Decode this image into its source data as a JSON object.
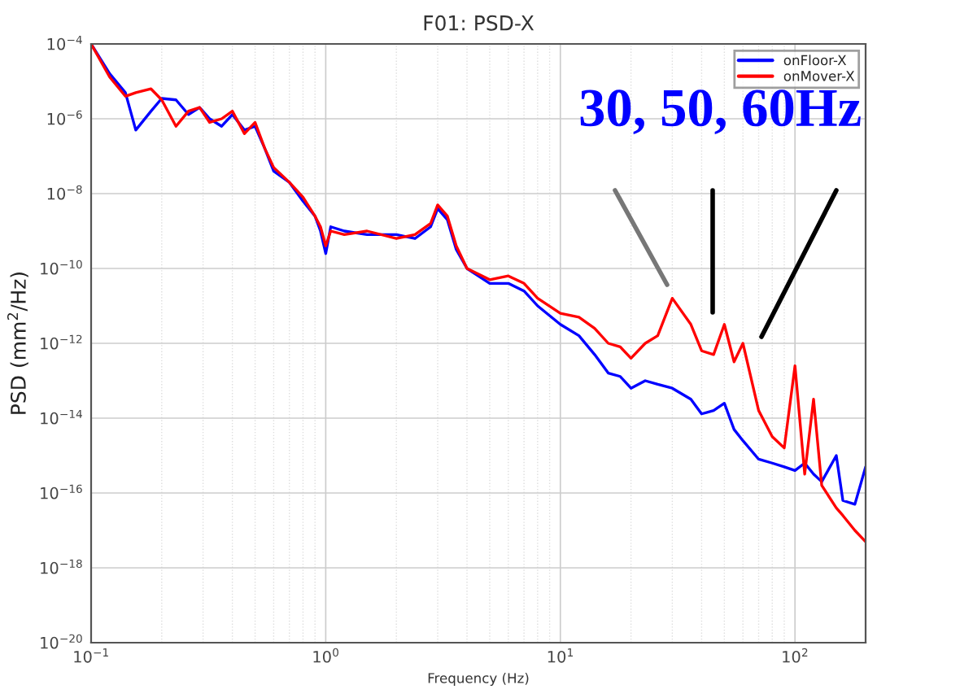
{
  "chart_data": {
    "type": "line",
    "title": "F01: PSD-X",
    "xlabel": "Frequency (Hz)",
    "ylabel": "PSD (mm$^{2}$/Hz)",
    "annotations": [
      "30, 50, 60Hz"
    ],
    "x": [
      0.1,
      0.12,
      0.14,
      0.155,
      0.18,
      0.2,
      0.23,
      0.26,
      0.29,
      0.32,
      0.36,
      0.4,
      0.45,
      0.5,
      0.55,
      0.6,
      0.7,
      0.8,
      0.9,
      0.95,
      1.0,
      1.05,
      1.2,
      1.5,
      2.0,
      2.4,
      2.8,
      3.0,
      3.3,
      3.6,
      4,
      5,
      6,
      7,
      8,
      10,
      12,
      14,
      16,
      18,
      20,
      23,
      26,
      30,
      36,
      40,
      45,
      50,
      55,
      60,
      70,
      80,
      90,
      100,
      110,
      120,
      130,
      150,
      160,
      180,
      200
    ],
    "series": [
      {
        "name": "onFloor-X",
        "color": "#0000ff",
        "values": [
          0.0001,
          1.6e-05,
          5e-06,
          5e-07,
          1.6e-06,
          3.5e-06,
          3.2e-06,
          1.3e-06,
          2e-06,
          1e-06,
          6.3e-07,
          1.3e-06,
          5e-07,
          6.3e-07,
          1.6e-07,
          4e-08,
          2e-08,
          6.3e-09,
          2.5e-09,
          1e-09,
          2.5e-10,
          1.3e-09,
          1e-09,
          8e-10,
          8e-10,
          6.3e-10,
          1.3e-09,
          4e-09,
          2e-09,
          3.2e-10,
          1e-10,
          4e-11,
          4e-11,
          2.5e-11,
          1e-11,
          3.2e-12,
          1.6e-12,
          5e-13,
          1.6e-13,
          1.3e-13,
          6.3e-14,
          1e-13,
          8e-14,
          6.3e-14,
          3.2e-14,
          1.3e-14,
          1.6e-14,
          2.5e-14,
          5e-15,
          2.5e-15,
          8e-16,
          6.3e-16,
          5e-16,
          4e-16,
          6.3e-16,
          3.2e-16,
          2e-16,
          1e-15,
          6.3e-17,
          5e-17,
          5e-16
        ]
      },
      {
        "name": "onMover-X",
        "color": "#ff0000",
        "values": [
          0.0001,
          1.3e-05,
          4e-06,
          5e-06,
          6.3e-06,
          3.2e-06,
          6.3e-07,
          1.6e-06,
          2e-06,
          8e-07,
          1e-06,
          1.6e-06,
          4e-07,
          8e-07,
          1.6e-07,
          5e-08,
          2e-08,
          8e-09,
          2.5e-09,
          1.3e-09,
          4e-10,
          1e-09,
          8e-10,
          1e-09,
          6.3e-10,
          8e-10,
          1.6e-09,
          5e-09,
          2.5e-09,
          4e-10,
          1e-10,
          5e-11,
          6.3e-11,
          4e-11,
          1.6e-11,
          6.3e-12,
          5e-12,
          2.5e-12,
          1e-12,
          8e-13,
          4e-13,
          1e-12,
          1.6e-12,
          1.6e-11,
          3.2e-12,
          6.3e-13,
          5e-13,
          3.2e-12,
          3.2e-13,
          1e-12,
          1.6e-14,
          3.2e-15,
          1.6e-15,
          2.5e-13,
          3.2e-16,
          3.2e-14,
          1.6e-16,
          4e-17,
          2.5e-17,
          1e-17,
          5e-18
        ]
      }
    ],
    "log": "xy",
    "xlim": [
      0.1,
      200
    ],
    "ylim": [
      1e-20,
      0.0001
    ],
    "xticks": [
      {
        "value": 0.1,
        "label": "10$^{−1}$"
      },
      {
        "value": 1,
        "label": "10$^{0}$"
      },
      {
        "value": 10,
        "label": "10$^{1}$"
      },
      {
        "value": 100,
        "label": "10$^{2}$"
      }
    ],
    "yticks": [
      {
        "value": 1e-20,
        "label": "10$^{−20}$"
      },
      {
        "value": 1e-18,
        "label": "10$^{−18}$"
      },
      {
        "value": 1e-16,
        "label": "10$^{−16}$"
      },
      {
        "value": 1e-14,
        "label": "10$^{−14}$"
      },
      {
        "value": 1e-12,
        "label": "10$^{−12}$"
      },
      {
        "value": 1e-10,
        "label": "10$^{−10}$"
      },
      {
        "value": 1e-08,
        "label": "10$^{−8}$"
      },
      {
        "value": 1e-06,
        "label": "10$^{−6}$"
      },
      {
        "value": 0.0001,
        "label": "10$^{−4}$"
      }
    ],
    "grid": true,
    "legend": "top right",
    "line_style": "solid"
  }
}
